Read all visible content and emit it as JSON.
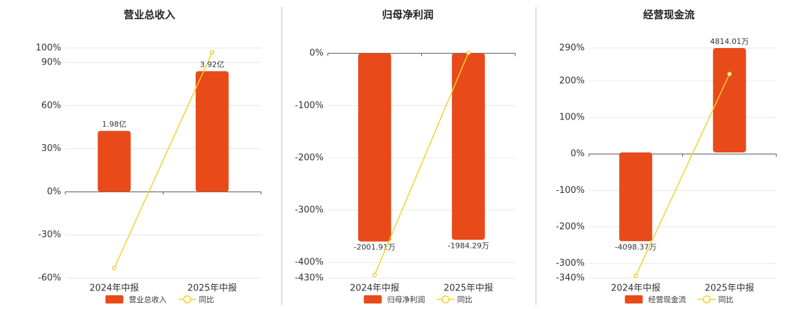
{
  "chart_data": [
    {
      "type": "bar",
      "title": "营业总收入",
      "categories": [
        "2024年中报",
        "2025年中报"
      ],
      "series": [
        {
          "name": "营业总收入",
          "color": "#e84a1a",
          "axis": "y2",
          "values": [
            1.98,
            3.92
          ],
          "value_labels": [
            "1.98亿",
            "3.92亿"
          ]
        },
        {
          "name": "同比",
          "type": "line",
          "color": "#f2d22e",
          "values": [
            -53,
            97
          ]
        }
      ],
      "ylim": [
        -60,
        100
      ],
      "yticks": [
        {
          "value": 100,
          "label": "100%"
        },
        {
          "value": 90,
          "label": "90%"
        },
        {
          "value": 60,
          "label": "60%"
        },
        {
          "value": 30,
          "label": "30%"
        },
        {
          "value": 0,
          "label": "0%"
        },
        {
          "value": -30,
          "label": "-30%"
        },
        {
          "value": -60,
          "label": "-60%"
        }
      ],
      "y2lim": [
        -2.8,
        4.67
      ],
      "grid": true
    },
    {
      "type": "bar",
      "title": "归母净利润",
      "categories": [
        "2024年中报",
        "2025年中报"
      ],
      "series": [
        {
          "name": "归母净利润",
          "color": "#e84a1a",
          "axis": "y2",
          "values": [
            -2001.91,
            -1984.29
          ],
          "value_labels": [
            "-2001.91万",
            "-1984.29万"
          ]
        },
        {
          "name": "同比",
          "type": "line",
          "color": "#f2d22e",
          "values": [
            -424,
            1
          ]
        }
      ],
      "ylim": [
        -430,
        10
      ],
      "yticks": [
        {
          "value": 0,
          "label": "0%"
        },
        {
          "value": -100,
          "label": "-100%"
        },
        {
          "value": -200,
          "label": "-200%"
        },
        {
          "value": -300,
          "label": "-300%"
        },
        {
          "value": -400,
          "label": "-400%"
        },
        {
          "value": -430,
          "label": "-430%"
        }
      ],
      "y2lim": [
        -2391,
        55.6
      ],
      "grid": true
    },
    {
      "type": "bar",
      "title": "经营现金流",
      "categories": [
        "2024年中报",
        "2025年中报"
      ],
      "series": [
        {
          "name": "经营现金流",
          "color": "#e84a1a",
          "axis": "y2",
          "values": [
            -4098.37,
            4814.01
          ],
          "value_labels": [
            "-4098.37万",
            "4814.01万"
          ]
        },
        {
          "name": "同比",
          "type": "line",
          "color": "#f2d22e",
          "values": [
            -334,
            219
          ]
        }
      ],
      "ylim": [
        -340,
        290
      ],
      "yticks": [
        {
          "value": 290,
          "label": "290%"
        },
        {
          "value": 200,
          "label": "200%"
        },
        {
          "value": 100,
          "label": "100%"
        },
        {
          "value": 0,
          "label": "0%"
        },
        {
          "value": -100,
          "label": "-100%"
        },
        {
          "value": -200,
          "label": "-200%"
        },
        {
          "value": -300,
          "label": "-300%"
        },
        {
          "value": -340,
          "label": "-340%"
        }
      ],
      "y2lim": [
        -5800,
        4814
      ],
      "grid": true
    }
  ]
}
